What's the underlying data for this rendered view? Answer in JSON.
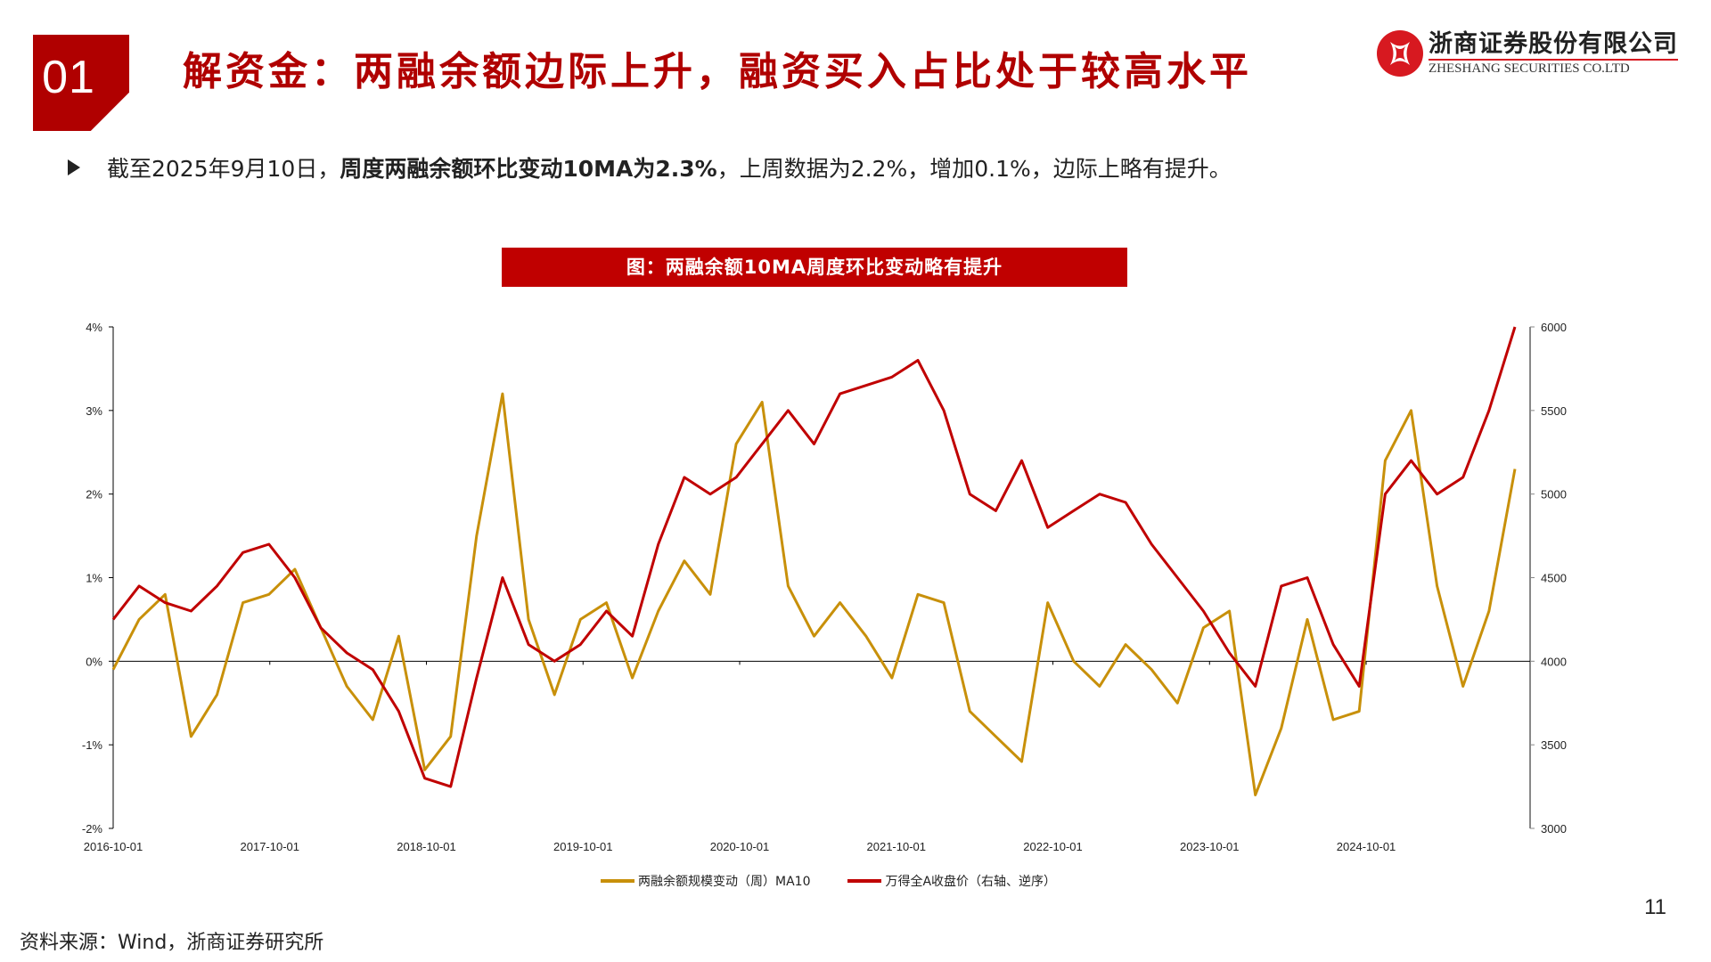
{
  "header": {
    "section_number": "01",
    "title": "解资金：两融余额边际上升，融资买入占比处于较高水平",
    "logo": {
      "cn": "浙商证券股份有限公司",
      "en": "ZHESHANG SECURITIES CO.LTD",
      "icon": "zheshang-logo-icon"
    }
  },
  "bullet": {
    "icon": "arrow-bullet-icon",
    "prefix": "截至2025年9月10日，",
    "bold": "周度两融余额环比变动10MA为2.3% ",
    "suffix": "，上周数据为2.2%，增加0.1%，边际上略有提升。"
  },
  "chart_banner": "图：两融余额10MA周度环比变动略有提升",
  "legend": {
    "series1": "两融余额规模变动（周）MA10",
    "series2": "万得全A收盘价（右轴、逆序）"
  },
  "colors": {
    "brand_red": "#b00000",
    "banner_red": "#c00000",
    "series1": "#c8900a",
    "series2": "#c00000"
  },
  "footer": {
    "source": "资料来源：Wind，浙商证券研究所",
    "page_number": "11"
  },
  "chart_data": {
    "type": "line",
    "title": "两融余额10MA周度环比变动略有提升",
    "xlabel": "",
    "ylabel": "",
    "x_ticks": [
      "2016-10-01",
      "2017-10-01",
      "2018-10-01",
      "2019-10-01",
      "2020-10-01",
      "2021-10-01",
      "2022-10-01",
      "2023-10-01",
      "2024-10-01"
    ],
    "y_left": {
      "ticks": [
        "-2%",
        "-1%",
        "0%",
        "1%",
        "2%",
        "3%",
        "4%"
      ],
      "range": [
        -2,
        4
      ],
      "unit": "%"
    },
    "y_right": {
      "ticks": [
        "3000",
        "3500",
        "4000",
        "4500",
        "5000",
        "5500",
        "6000"
      ],
      "range": [
        3000,
        6000
      ]
    },
    "grid": false,
    "legend_position": "bottom",
    "x": [
      "2016-10",
      "2016-12",
      "2017-02",
      "2017-04",
      "2017-06",
      "2017-08",
      "2017-10",
      "2017-12",
      "2018-02",
      "2018-04",
      "2018-06",
      "2018-08",
      "2018-10",
      "2018-12",
      "2019-02",
      "2019-04",
      "2019-06",
      "2019-08",
      "2019-10",
      "2019-12",
      "2020-02",
      "2020-04",
      "2020-06",
      "2020-08",
      "2020-10",
      "2020-12",
      "2021-02",
      "2021-04",
      "2021-06",
      "2021-08",
      "2021-10",
      "2021-12",
      "2022-02",
      "2022-04",
      "2022-06",
      "2022-08",
      "2022-10",
      "2022-12",
      "2023-02",
      "2023-04",
      "2023-06",
      "2023-08",
      "2023-10",
      "2023-12",
      "2024-02",
      "2024-04",
      "2024-06",
      "2024-08",
      "2024-10",
      "2024-12",
      "2025-02",
      "2025-04",
      "2025-06",
      "2025-08",
      "2025-09"
    ],
    "series": [
      {
        "name": "两融余额规模变动（周）MA10",
        "axis": "left",
        "values": [
          -0.1,
          0.5,
          0.8,
          -0.9,
          -0.4,
          0.7,
          0.8,
          1.1,
          0.4,
          -0.3,
          -0.7,
          0.3,
          -1.3,
          -0.9,
          1.5,
          3.2,
          0.5,
          -0.4,
          0.5,
          0.7,
          -0.2,
          0.6,
          1.2,
          0.8,
          2.6,
          3.1,
          0.9,
          0.3,
          0.7,
          0.3,
          -0.2,
          0.8,
          0.7,
          -0.6,
          -0.9,
          -1.2,
          0.7,
          0.0,
          -0.3,
          0.2,
          -0.1,
          -0.5,
          0.4,
          0.6,
          -1.6,
          -0.8,
          0.5,
          -0.7,
          -0.6,
          2.4,
          3.0,
          0.9,
          -0.3,
          0.6,
          2.3
        ]
      },
      {
        "name": "万得全A收盘价（右轴、逆序）",
        "axis": "right",
        "values": [
          4250,
          4450,
          4350,
          4300,
          4450,
          4650,
          4700,
          4500,
          4200,
          4050,
          3950,
          3700,
          3300,
          3250,
          3900,
          4500,
          4100,
          4000,
          4100,
          4300,
          4150,
          4700,
          5100,
          5000,
          5100,
          5300,
          5500,
          5300,
          5600,
          5650,
          5700,
          5800,
          5500,
          5000,
          4900,
          5200,
          4800,
          4900,
          5000,
          4950,
          4700,
          4500,
          4300,
          4050,
          3850,
          4450,
          4500,
          4100,
          3850,
          5000,
          5200,
          5000,
          5100,
          5500,
          6000
        ]
      }
    ]
  }
}
